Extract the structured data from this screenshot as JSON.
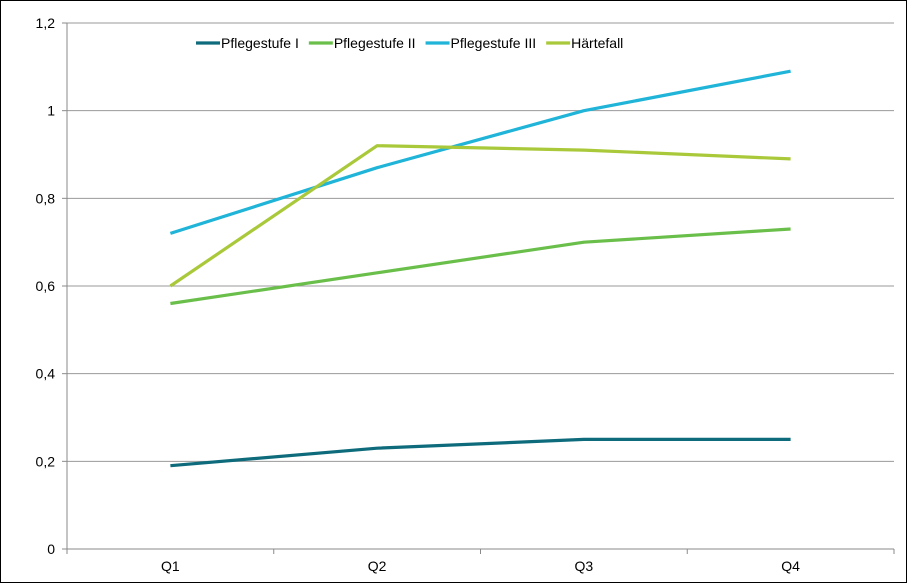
{
  "chart_data": {
    "type": "line",
    "categories": [
      "Q1",
      "Q2",
      "Q3",
      "Q4"
    ],
    "series": [
      {
        "name": "Pflegestufe I",
        "color": "#0e6b7b",
        "values": [
          0.19,
          0.23,
          0.25,
          0.25
        ]
      },
      {
        "name": "Pflegestufe II",
        "color": "#6abf4b",
        "values": [
          0.56,
          0.63,
          0.7,
          0.73
        ]
      },
      {
        "name": "Pflegestufe III",
        "color": "#1fb4d8",
        "values": [
          0.72,
          0.87,
          1.0,
          1.09
        ]
      },
      {
        "name": "Härtefall",
        "color": "#a9c93a",
        "values": [
          0.6,
          0.92,
          0.91,
          0.89
        ]
      }
    ],
    "y_ticks": [
      "0",
      "0,2",
      "0,4",
      "0,6",
      "0,8",
      "1",
      "1,2"
    ],
    "ylim": [
      0,
      1.2
    ],
    "grid": true,
    "legend_position": "top-center"
  }
}
